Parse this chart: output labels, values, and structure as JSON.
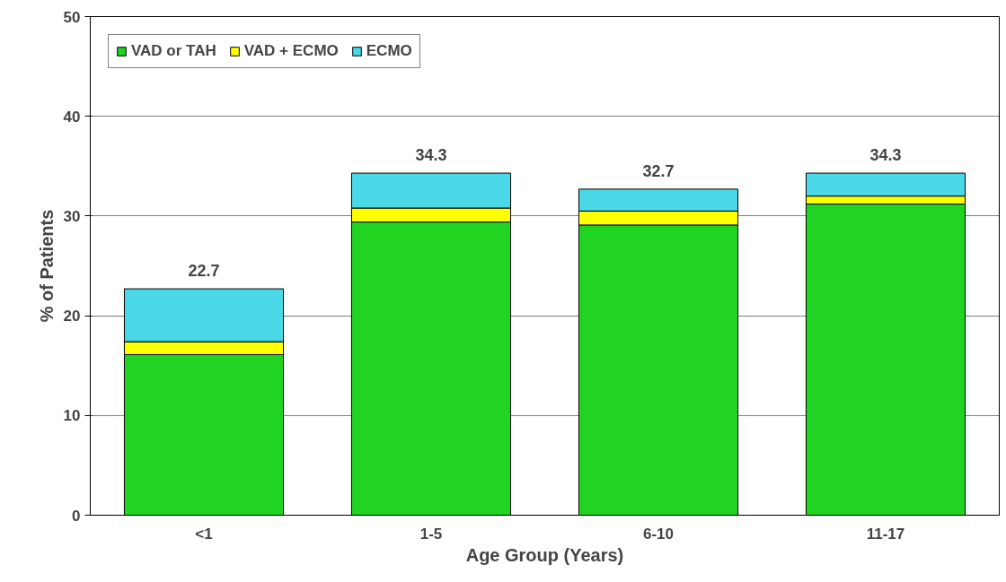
{
  "chart_data": {
    "type": "bar",
    "stacked": true,
    "xlabel": "Age Group (Years)",
    "ylabel": "% of Patients",
    "categories": [
      "<1",
      "1-5",
      "6-10",
      "11-17"
    ],
    "series": [
      {
        "name": "VAD or TAH",
        "color": "#22d422",
        "values": [
          16.1,
          29.4,
          29.1,
          31.2
        ]
      },
      {
        "name": "VAD + ECMO",
        "color": "#ffff00",
        "values": [
          1.3,
          1.4,
          1.4,
          0.8
        ]
      },
      {
        "name": "ECMO",
        "color": "#4ad8e6",
        "values": [
          5.3,
          3.5,
          2.2,
          2.3
        ]
      }
    ],
    "totals": [
      "22.7",
      "34.3",
      "32.7",
      "34.3"
    ],
    "ylim": [
      0,
      50
    ],
    "yticks": [
      0,
      10,
      20,
      30,
      40,
      50
    ],
    "grid": "y",
    "legend": "top left"
  }
}
